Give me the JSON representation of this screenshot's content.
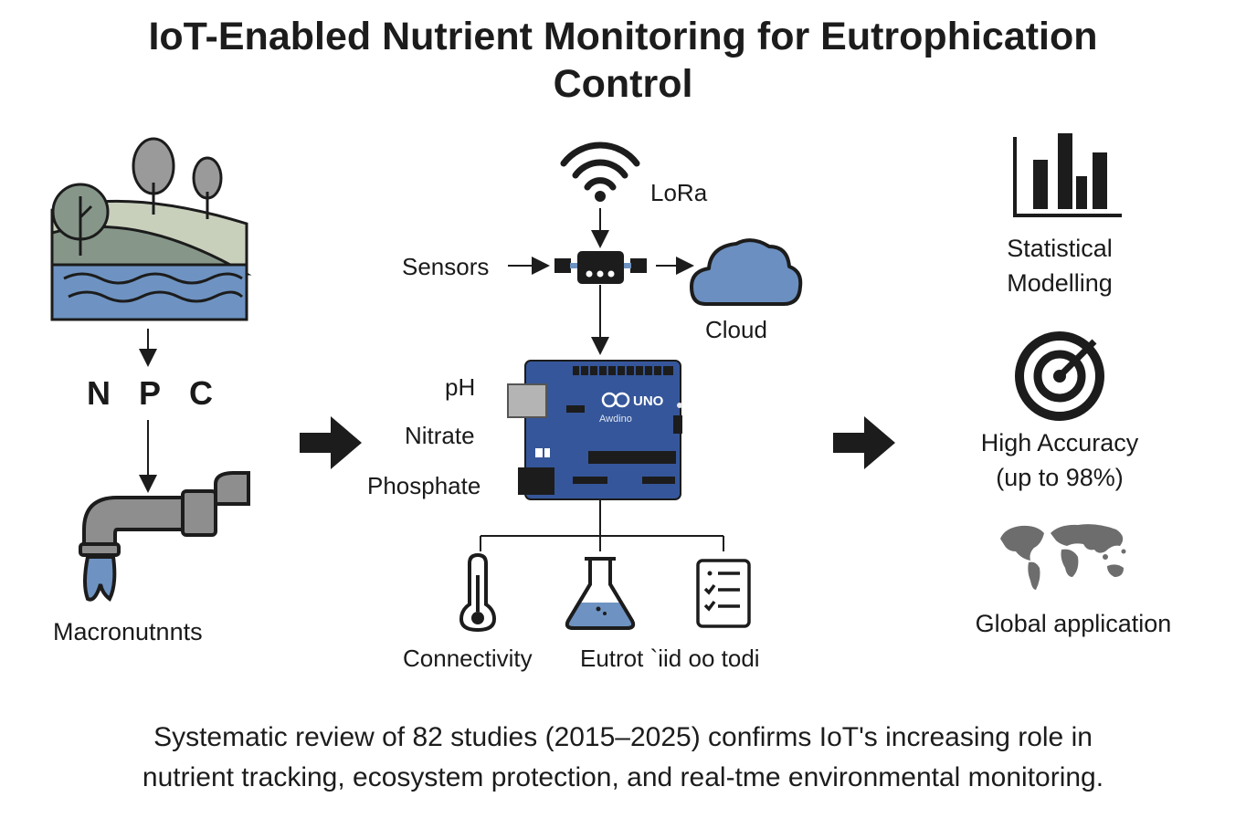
{
  "title": {
    "line1": "IoT-Enabled Nutrient Monitoring for Eutrophication",
    "line2": "Control"
  },
  "left": {
    "nutrients": [
      "N",
      "P",
      "C"
    ],
    "caption": "Macronutnnts"
  },
  "center": {
    "lora_label": "LoRa",
    "sensors_label": "Sensors",
    "cloud_label": "Cloud",
    "board_text": "UNO",
    "board_subtext": "Awdino",
    "inputs": [
      "pH",
      "Nitrate",
      "Phosphate"
    ],
    "outputs": {
      "connectivity": "Connectivity",
      "eutrophication": "Eutrot `iid oo todi"
    }
  },
  "right": {
    "statistical": [
      "Statistical",
      "Modelling"
    ],
    "accuracy": [
      "High Accuracy",
      "(up to 98%)"
    ],
    "global": "Global application"
  },
  "footer": {
    "line1": "Systematic review of 82 studies (2015–2025) confirms IoT's increasing role in",
    "line2": "nutrient tracking, ecosystem protection, and real-tme environmental monitoring."
  },
  "colors": {
    "water": "#6e93c2",
    "hill_dark": "#86978a",
    "hill_light": "#c8d0bc",
    "board": "#35569a",
    "cloud": "#6b8fc0",
    "pipe": "#8e8e8e",
    "ink": "#1c1c1c"
  }
}
